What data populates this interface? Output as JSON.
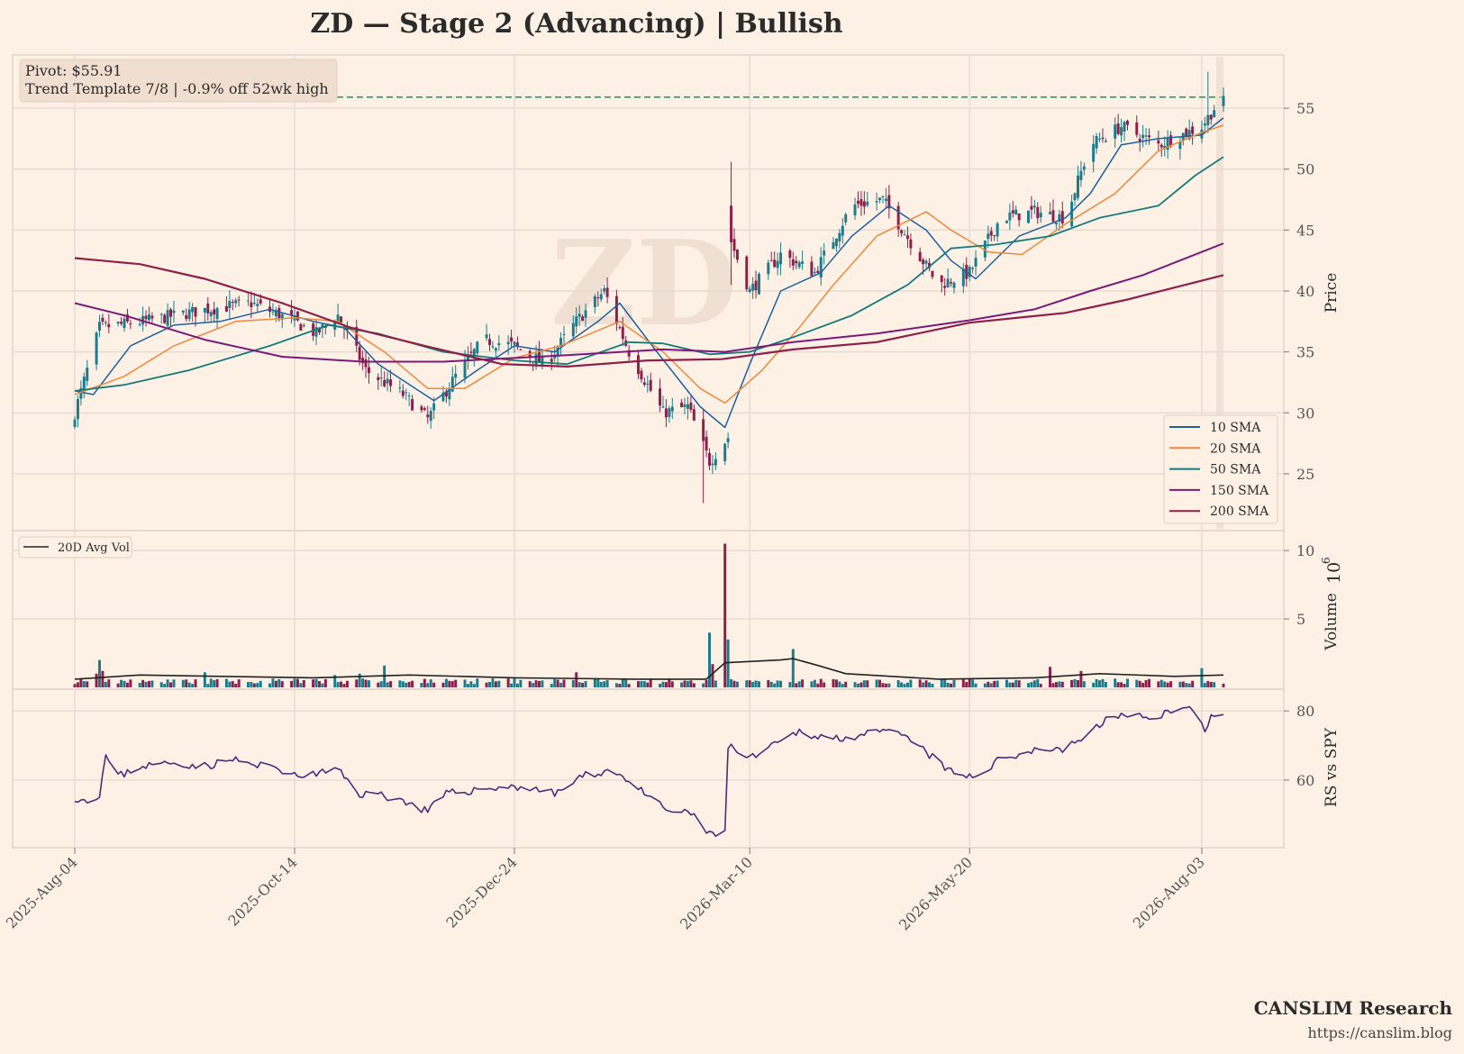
{
  "title": "ZD  —  Stage 2 (Advancing)  |  Bullish",
  "watermark": "ZD",
  "info_box": {
    "pivot": "Pivot: $55.91",
    "template": "Trend Template 7/8  |  -0.9% off 52wk high"
  },
  "branding": {
    "name": "CANSLIM Research",
    "url": "https://canslim.blog"
  },
  "colors": {
    "background": "#fdf1e6",
    "up": "#1b7c8c",
    "down": "#8e1f4a",
    "sma10": "#1f5fa0",
    "sma20": "#f0883a",
    "sma50": "#177a7a",
    "sma150": "#7a1a78",
    "sma200": "#8e1f4a",
    "pivot_line": "#2aa05a",
    "rs_line": "#4a2d7a",
    "avg_vol": "#222222"
  },
  "chart_data": [
    {
      "type": "candlestick",
      "panel": "price",
      "ylabel": "Price",
      "ylim": [
        21,
        59
      ],
      "yticks": [
        25,
        30,
        35,
        40,
        45,
        50,
        55
      ],
      "date_range": [
        "2025-08-04",
        "2026-08-10"
      ],
      "pivot": 55.91,
      "anchors": [
        {
          "date": "2025-08-04",
          "close": 30.0
        },
        {
          "date": "2025-08-12",
          "close": 37.0
        },
        {
          "date": "2025-08-26",
          "close": 37.5
        },
        {
          "date": "2025-09-16",
          "close": 38.5
        },
        {
          "date": "2025-09-30",
          "close": 39.0
        },
        {
          "date": "2025-10-14",
          "close": 37.5
        },
        {
          "date": "2025-10-21",
          "close": 36.5
        },
        {
          "date": "2025-10-28",
          "close": 38.0
        },
        {
          "date": "2025-11-06",
          "close": 33.5
        },
        {
          "date": "2025-11-18",
          "close": 31.5
        },
        {
          "date": "2025-11-26",
          "close": 29.5
        },
        {
          "date": "2025-12-05",
          "close": 33.0
        },
        {
          "date": "2025-12-14",
          "close": 36.0
        },
        {
          "date": "2025-12-24",
          "close": 35.5
        },
        {
          "date": "2026-01-03",
          "close": 34.0
        },
        {
          "date": "2026-01-13",
          "close": 37.5
        },
        {
          "date": "2026-01-22",
          "close": 40.0
        },
        {
          "date": "2026-01-30",
          "close": 35.0
        },
        {
          "date": "2026-02-10",
          "close": 30.0
        },
        {
          "date": "2026-02-18",
          "close": 30.5
        },
        {
          "date": "2026-02-25",
          "close": 26.0
        },
        {
          "date": "2026-03-03",
          "close": 28.0
        },
        {
          "date": "2026-03-04",
          "close": 44.0
        },
        {
          "date": "2026-03-10",
          "close": 40.0
        },
        {
          "date": "2026-03-20",
          "close": 43.0
        },
        {
          "date": "2026-03-31",
          "close": 41.5
        },
        {
          "date": "2026-04-12",
          "close": 47.0
        },
        {
          "date": "2026-04-22",
          "close": 47.5
        },
        {
          "date": "2026-05-01",
          "close": 44.0
        },
        {
          "date": "2026-05-10",
          "close": 40.5
        },
        {
          "date": "2026-05-20",
          "close": 41.5
        },
        {
          "date": "2026-05-30",
          "close": 46.0
        },
        {
          "date": "2026-06-10",
          "close": 46.5
        },
        {
          "date": "2026-06-20",
          "close": 46.0
        },
        {
          "date": "2026-06-28",
          "close": 52.0
        },
        {
          "date": "2026-07-08",
          "close": 53.5
        },
        {
          "date": "2026-07-20",
          "close": 52.0
        },
        {
          "date": "2026-08-03",
          "close": 53.5
        },
        {
          "date": "2026-08-07",
          "close": 55.0
        },
        {
          "date": "2026-08-10",
          "close": 55.5
        }
      ],
      "series": [
        {
          "name": "10 SMA",
          "points": [
            [
              "2025-08-04",
              31.8
            ],
            [
              "2025-08-10",
              31.5
            ],
            [
              "2025-08-22",
              35.5
            ],
            [
              "2025-09-05",
              37.2
            ],
            [
              "2025-09-20",
              37.5
            ],
            [
              "2025-10-06",
              38.5
            ],
            [
              "2025-10-20",
              37.5
            ],
            [
              "2025-10-30",
              37.0
            ],
            [
              "2025-11-10",
              34.0
            ],
            [
              "2025-11-28",
              31.0
            ],
            [
              "2025-12-12",
              33.5
            ],
            [
              "2025-12-24",
              35.5
            ],
            [
              "2026-01-06",
              35.0
            ],
            [
              "2026-01-20",
              37.5
            ],
            [
              "2026-01-27",
              39.0
            ],
            [
              "2026-02-08",
              35.0
            ],
            [
              "2026-02-22",
              30.5
            ],
            [
              "2026-03-02",
              28.8
            ],
            [
              "2026-03-10",
              34.0
            ],
            [
              "2026-03-20",
              40.0
            ],
            [
              "2026-04-02",
              41.5
            ],
            [
              "2026-04-12",
              44.5
            ],
            [
              "2026-04-24",
              47.0
            ],
            [
              "2026-05-06",
              45.0
            ],
            [
              "2026-05-14",
              42.5
            ],
            [
              "2026-05-22",
              41.0
            ],
            [
              "2026-06-05",
              44.5
            ],
            [
              "2026-06-20",
              46.0
            ],
            [
              "2026-06-28",
              48.0
            ],
            [
              "2026-07-08",
              52.0
            ],
            [
              "2026-07-20",
              52.5
            ],
            [
              "2026-08-03",
              52.8
            ],
            [
              "2026-08-10",
              54.2
            ]
          ]
        },
        {
          "name": "20 SMA",
          "points": [
            [
              "2025-08-04",
              31.5
            ],
            [
              "2025-08-20",
              33.0
            ],
            [
              "2025-09-05",
              35.5
            ],
            [
              "2025-09-25",
              37.5
            ],
            [
              "2025-10-14",
              37.8
            ],
            [
              "2025-10-28",
              37.5
            ],
            [
              "2025-11-12",
              35.0
            ],
            [
              "2025-11-26",
              32.0
            ],
            [
              "2025-12-08",
              32.0
            ],
            [
              "2025-12-24",
              34.5
            ],
            [
              "2026-01-08",
              35.5
            ],
            [
              "2026-01-27",
              37.5
            ],
            [
              "2026-02-10",
              35.0
            ],
            [
              "2026-02-22",
              32.0
            ],
            [
              "2026-03-02",
              30.8
            ],
            [
              "2026-03-14",
              33.5
            ],
            [
              "2026-03-26",
              37.0
            ],
            [
              "2026-04-06",
              40.5
            ],
            [
              "2026-04-20",
              44.5
            ],
            [
              "2026-05-06",
              46.5
            ],
            [
              "2026-05-14",
              45.0
            ],
            [
              "2026-05-26",
              43.2
            ],
            [
              "2026-06-06",
              43.0
            ],
            [
              "2026-06-20",
              45.5
            ],
            [
              "2026-07-06",
              48.0
            ],
            [
              "2026-07-20",
              51.5
            ],
            [
              "2026-08-03",
              53.0
            ],
            [
              "2026-08-10",
              53.6
            ]
          ]
        },
        {
          "name": "50 SMA",
          "points": [
            [
              "2025-08-04",
              31.8
            ],
            [
              "2025-08-20",
              32.3
            ],
            [
              "2025-09-10",
              33.5
            ],
            [
              "2025-10-06",
              35.5
            ],
            [
              "2025-10-25",
              37.2
            ],
            [
              "2025-11-10",
              36.5
            ],
            [
              "2025-12-01",
              35.0
            ],
            [
              "2025-12-24",
              34.3
            ],
            [
              "2026-01-10",
              34.0
            ],
            [
              "2026-01-30",
              35.8
            ],
            [
              "2026-02-10",
              35.7
            ],
            [
              "2026-02-25",
              34.8
            ],
            [
              "2026-03-10",
              35.0
            ],
            [
              "2026-03-24",
              36.2
            ],
            [
              "2026-04-12",
              38.0
            ],
            [
              "2026-04-30",
              40.5
            ],
            [
              "2026-05-14",
              43.5
            ],
            [
              "2026-05-28",
              43.8
            ],
            [
              "2026-06-15",
              44.5
            ],
            [
              "2026-07-01",
              46.0
            ],
            [
              "2026-07-20",
              47.0
            ],
            [
              "2026-08-01",
              49.5
            ],
            [
              "2026-08-10",
              51.0
            ]
          ]
        },
        {
          "name": "150 SMA",
          "points": [
            [
              "2025-08-04",
              39.0
            ],
            [
              "2025-08-20",
              38.0
            ],
            [
              "2025-09-15",
              36.0
            ],
            [
              "2025-10-10",
              34.6
            ],
            [
              "2025-11-05",
              34.2
            ],
            [
              "2025-12-01",
              34.2
            ],
            [
              "2025-12-24",
              34.5
            ],
            [
              "2026-01-15",
              34.8
            ],
            [
              "2026-02-10",
              35.2
            ],
            [
              "2026-03-02",
              35.0
            ],
            [
              "2026-03-24",
              35.8
            ],
            [
              "2026-04-20",
              36.5
            ],
            [
              "2026-05-20",
              37.6
            ],
            [
              "2026-06-10",
              38.5
            ],
            [
              "2026-06-28",
              40.0
            ],
            [
              "2026-07-15",
              41.3
            ],
            [
              "2026-08-10",
              43.9
            ]
          ]
        },
        {
          "name": "200 SMA",
          "points": [
            [
              "2025-08-04",
              42.7
            ],
            [
              "2025-08-25",
              42.2
            ],
            [
              "2025-09-15",
              41.0
            ],
            [
              "2025-10-10",
              39.0
            ],
            [
              "2025-11-01",
              37.0
            ],
            [
              "2025-11-25",
              35.5
            ],
            [
              "2025-12-20",
              34.0
            ],
            [
              "2026-01-10",
              33.8
            ],
            [
              "2026-02-05",
              34.3
            ],
            [
              "2026-03-01",
              34.4
            ],
            [
              "2026-03-24",
              35.2
            ],
            [
              "2026-04-20",
              35.8
            ],
            [
              "2026-05-20",
              37.4
            ],
            [
              "2026-06-20",
              38.2
            ],
            [
              "2026-07-10",
              39.3
            ],
            [
              "2026-08-10",
              41.3
            ]
          ]
        }
      ]
    },
    {
      "type": "bar",
      "panel": "volume",
      "ylabel": "Volume",
      "scale_label": "10",
      "scale_exponent": "6",
      "yticks": [
        5,
        10
      ],
      "ylim": [
        0,
        10.6
      ],
      "legend": "20D Avg Vol",
      "baseline_millions": 0.45,
      "spikes": [
        {
          "date": "2025-08-11",
          "value": 1.0
        },
        {
          "date": "2025-08-12",
          "value": 2.0
        },
        {
          "date": "2025-08-13",
          "value": 1.2
        },
        {
          "date": "2025-09-15",
          "value": 1.1
        },
        {
          "date": "2025-10-27",
          "value": 0.9
        },
        {
          "date": "2025-11-04",
          "value": 1.0
        },
        {
          "date": "2025-11-12",
          "value": 1.6
        },
        {
          "date": "2025-12-20",
          "value": 0.8
        },
        {
          "date": "2026-01-13",
          "value": 1.1
        },
        {
          "date": "2026-02-25",
          "value": 4.0
        },
        {
          "date": "2026-02-26",
          "value": 1.7
        },
        {
          "date": "2026-03-02",
          "value": 10.5
        },
        {
          "date": "2026-03-03",
          "value": 3.5
        },
        {
          "date": "2026-03-24",
          "value": 2.8
        },
        {
          "date": "2026-06-15",
          "value": 1.5
        },
        {
          "date": "2026-06-25",
          "value": 1.2
        },
        {
          "date": "2026-08-03",
          "value": 1.4
        }
      ],
      "avg_points": [
        [
          "2025-08-04",
          0.6
        ],
        [
          "2025-08-25",
          0.9
        ],
        [
          "2025-09-20",
          0.8
        ],
        [
          "2025-10-20",
          0.7
        ],
        [
          "2025-11-20",
          0.9
        ],
        [
          "2025-12-24",
          0.7
        ],
        [
          "2026-02-01",
          0.6
        ],
        [
          "2026-02-24",
          0.6
        ],
        [
          "2026-03-02",
          1.8
        ],
        [
          "2026-03-20",
          2.0
        ],
        [
          "2026-03-24",
          2.1
        ],
        [
          "2026-04-01",
          1.6
        ],
        [
          "2026-04-10",
          1.0
        ],
        [
          "2026-05-10",
          0.6
        ],
        [
          "2026-06-10",
          0.7
        ],
        [
          "2026-07-01",
          1.0
        ],
        [
          "2026-07-25",
          0.8
        ],
        [
          "2026-08-10",
          0.9
        ]
      ]
    },
    {
      "type": "line",
      "panel": "rs",
      "ylabel": "RS vs SPY",
      "yticks": [
        60,
        80
      ],
      "ylim": [
        42,
        85
      ],
      "points": [
        [
          "2025-08-04",
          55
        ],
        [
          "2025-08-08",
          54
        ],
        [
          "2025-08-12",
          56
        ],
        [
          "2025-08-14",
          67
        ],
        [
          "2025-08-18",
          61
        ],
        [
          "2025-08-25",
          64
        ],
        [
          "2025-09-05",
          65
        ],
        [
          "2025-09-15",
          64
        ],
        [
          "2025-09-25",
          66
        ],
        [
          "2025-10-01",
          64
        ],
        [
          "2025-10-08",
          64
        ],
        [
          "2025-10-14",
          61
        ],
        [
          "2025-10-22",
          62
        ],
        [
          "2025-10-28",
          63
        ],
        [
          "2025-11-04",
          56
        ],
        [
          "2025-11-10",
          56
        ],
        [
          "2025-11-18",
          54
        ],
        [
          "2025-11-26",
          51
        ],
        [
          "2025-12-02",
          56
        ],
        [
          "2025-12-10",
          57
        ],
        [
          "2025-12-20",
          58
        ],
        [
          "2025-12-28",
          58
        ],
        [
          "2026-01-06",
          56
        ],
        [
          "2026-01-15",
          61
        ],
        [
          "2026-01-24",
          63
        ],
        [
          "2026-01-30",
          60
        ],
        [
          "2026-02-05",
          55
        ],
        [
          "2026-02-12",
          51
        ],
        [
          "2026-02-20",
          50
        ],
        [
          "2026-02-25",
          44
        ],
        [
          "2026-03-02",
          45
        ],
        [
          "2026-03-03",
          70
        ],
        [
          "2026-03-10",
          66
        ],
        [
          "2026-03-18",
          70
        ],
        [
          "2026-03-26",
          74
        ],
        [
          "2026-04-05",
          72
        ],
        [
          "2026-04-15",
          73
        ],
        [
          "2026-04-25",
          74
        ],
        [
          "2026-05-02",
          71
        ],
        [
          "2026-05-10",
          65
        ],
        [
          "2026-05-16",
          61
        ],
        [
          "2026-05-22",
          61
        ],
        [
          "2026-05-30",
          66
        ],
        [
          "2026-06-10",
          69
        ],
        [
          "2026-06-20",
          69
        ],
        [
          "2026-06-30",
          75
        ],
        [
          "2026-07-05",
          79
        ],
        [
          "2026-07-15",
          78
        ],
        [
          "2026-07-25",
          80
        ],
        [
          "2026-08-01",
          81
        ],
        [
          "2026-08-04",
          75
        ],
        [
          "2026-08-06",
          78
        ],
        [
          "2026-08-10",
          79
        ]
      ]
    }
  ]
}
